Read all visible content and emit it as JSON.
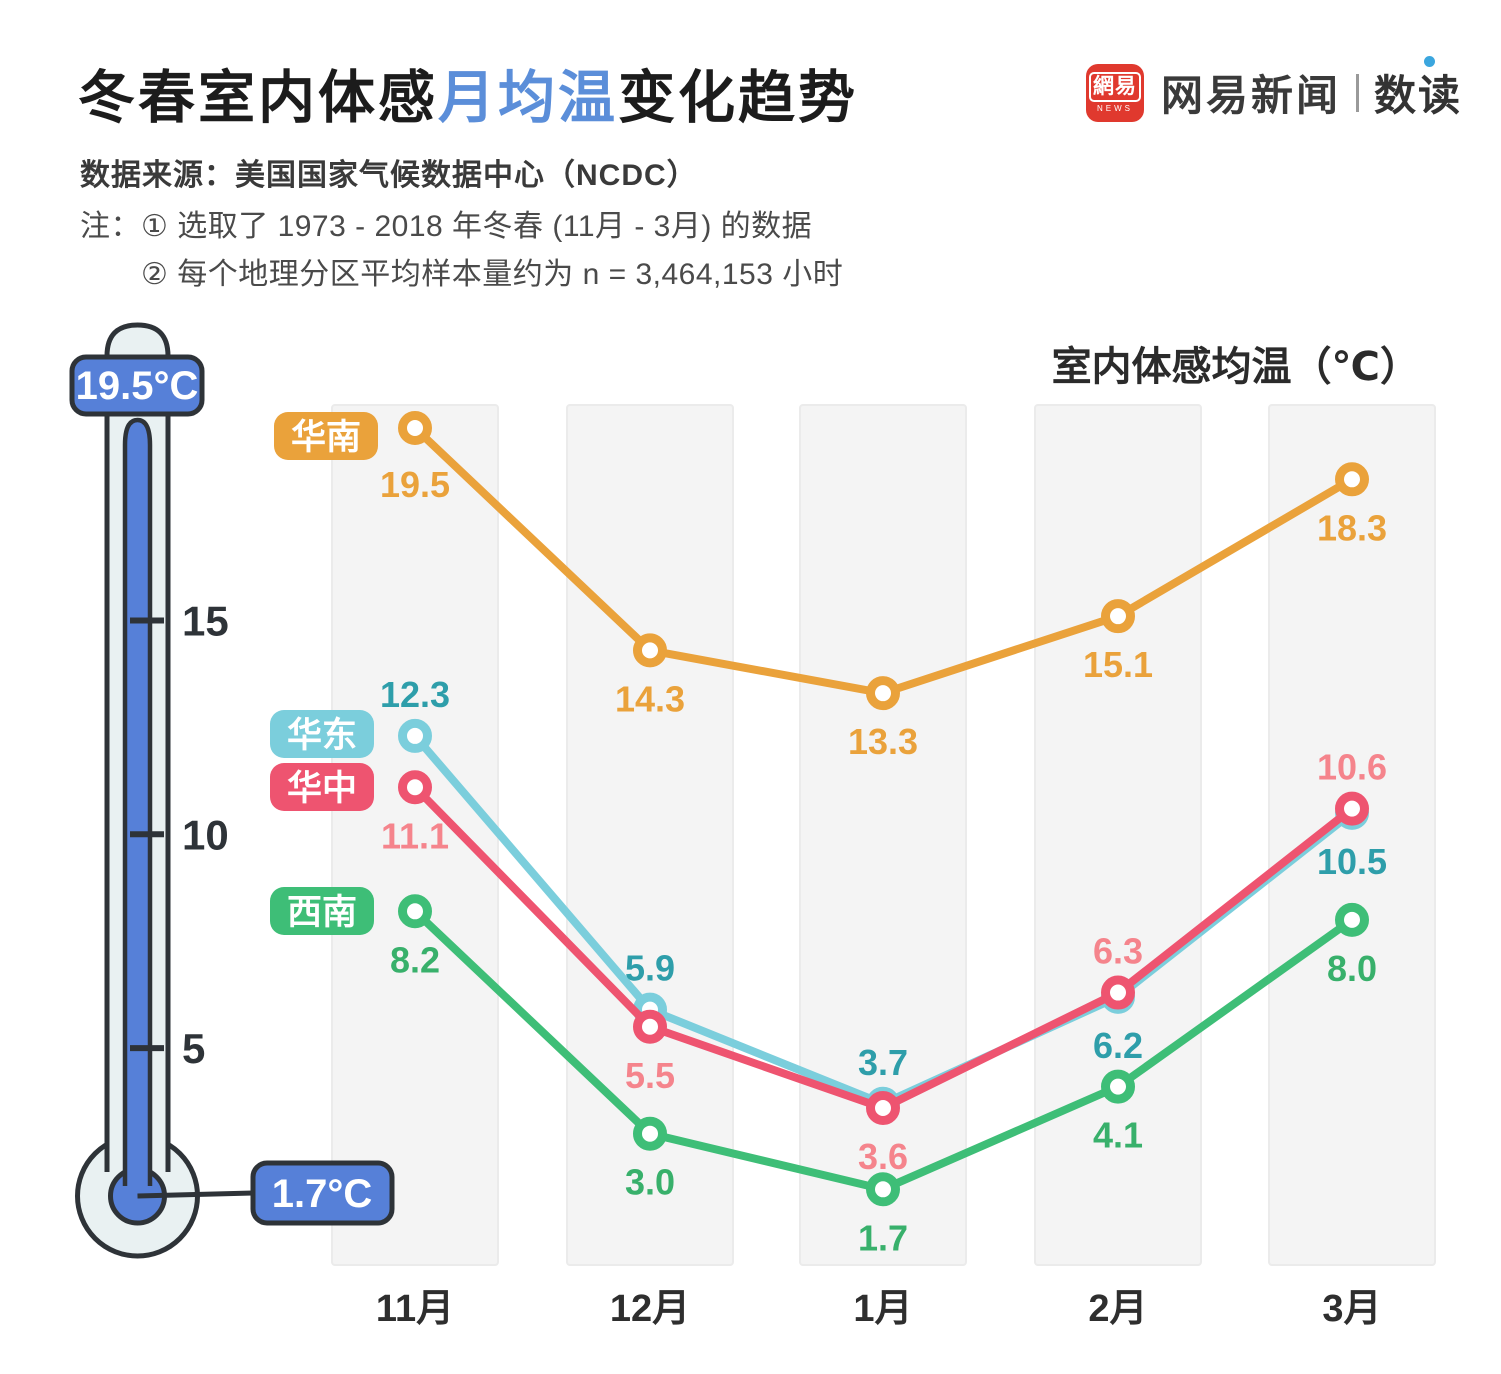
{
  "header": {
    "title1": "冬春室内体感",
    "title_accent": "月均温",
    "title2": "变化趋势",
    "accent_color": "#5b8ed9",
    "source": "数据来源：美国国家气候数据中心（NCDC）",
    "note_prefix": "注：",
    "note1": "① 选取了 1973 - 2018 年冬春 (11月 - 3月) 的数据",
    "note2": "② 每个地理分区平均样本量约为 n = 3,464,153 小时"
  },
  "logo": {
    "badge_text": "網易",
    "badge_sub": "NEWS",
    "badge_color": "#e0392e",
    "name": "网易新闻",
    "section": "数读",
    "dot_color": "#3ba6de"
  },
  "thermometer": {
    "max_label": "19.5°C",
    "min_label": "1.7°C",
    "max_value": 19.5,
    "min_value": 1.7,
    "ticks": [
      {
        "value": 15,
        "label": "15"
      },
      {
        "value": 10,
        "label": "10"
      },
      {
        "value": 5,
        "label": "5"
      }
    ],
    "mercury_color": "#5680d8",
    "glass_color": "#e9f1f2",
    "outline_color": "#2e3338",
    "label_text_color": "#ffffff"
  },
  "chart_data": {
    "type": "line",
    "title": "室内体感均温（℃）",
    "title_color": "#2b2b2b",
    "categories": [
      "11月",
      "12月",
      "1月",
      "2月",
      "3月"
    ],
    "x_label_color": "#2e2e2e",
    "band_fill": "#f4f4f4",
    "band_border": "#ebebeb",
    "ylim": [
      0,
      20
    ],
    "grid": "column-bands",
    "legend_position": "badge-next-to-first-point",
    "series": [
      {
        "name": "华南",
        "color": "#eaa23b",
        "label_color": "#eaa23b",
        "values": [
          19.5,
          14.3,
          13.3,
          15.1,
          18.3
        ],
        "label_pos": [
          "below",
          "below",
          "below",
          "below",
          "below"
        ]
      },
      {
        "name": "华东",
        "color": "#7bcedc",
        "label_color": "#2e9eaa",
        "values": [
          12.3,
          5.9,
          3.7,
          6.2,
          10.5
        ],
        "label_pos": [
          "above",
          "above",
          "above",
          "below",
          "below"
        ]
      },
      {
        "name": "华中",
        "color": "#ee5470",
        "label_color": "#f5848c",
        "values": [
          11.1,
          5.5,
          3.6,
          6.3,
          10.6
        ],
        "label_pos": [
          "below",
          "below",
          "below",
          "above",
          "above"
        ]
      },
      {
        "name": "西南",
        "color": "#3ebe77",
        "label_color": "#38b06b",
        "values": [
          8.2,
          3.0,
          1.7,
          4.1,
          8.0
        ],
        "label_pos": [
          "below",
          "below",
          "below",
          "below",
          "below"
        ]
      }
    ]
  }
}
